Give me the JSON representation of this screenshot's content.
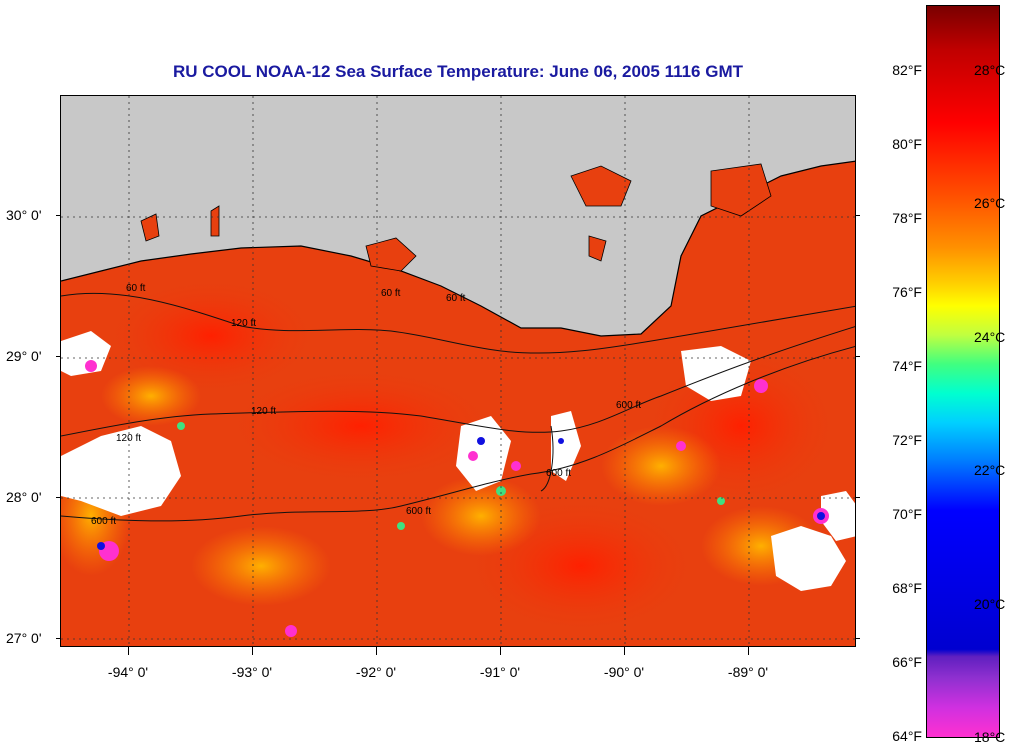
{
  "title": "RU COOL  NOAA-12  Sea Surface Temperature:  June 06, 2005 1116 GMT",
  "latitude_labels": [
    "30° 0'",
    "29° 0'",
    "28° 0'",
    "27° 0'"
  ],
  "longitude_labels": [
    "-94° 0'",
    "-93° 0'",
    "-92° 0'",
    "-91° 0'",
    "-90° 0'",
    "-89° 0'"
  ],
  "isobath_labels": [
    "60 ft",
    "120 ft",
    "60 ft",
    "60 ft",
    "120 ft",
    "600 ft",
    "120 ft",
    "600 ft",
    "600 ft",
    "600 ft"
  ],
  "colorbar": {
    "fahrenheit": [
      "82°F",
      "80°F",
      "78°F",
      "76°F",
      "74°F",
      "72°F",
      "70°F",
      "68°F",
      "66°F",
      "64°F"
    ],
    "celsius": [
      "28°C",
      "26°C",
      "24°C",
      "22°C",
      "20°C",
      "18°C"
    ]
  },
  "colors": {
    "land": "#c8c8c8",
    "title": "#1a1aa0",
    "warm": "#e83010",
    "cloud": "#ffffff"
  }
}
